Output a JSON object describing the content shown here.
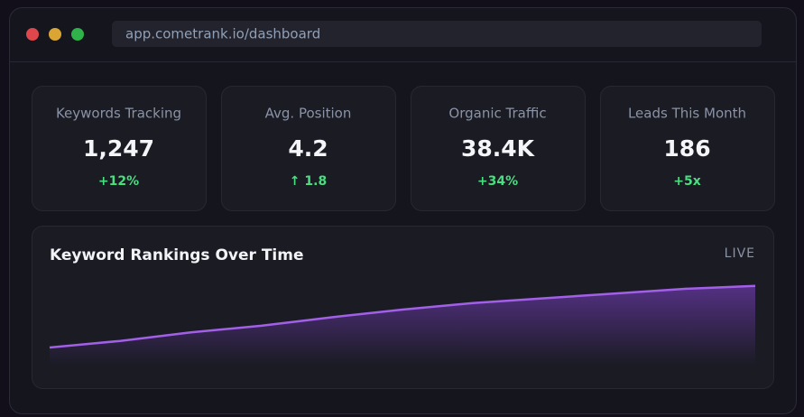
{
  "browser": {
    "url": "app.cometrank.io/dashboard"
  },
  "stats": [
    {
      "label": "Keywords Tracking",
      "value": "1,247",
      "change": "+12%"
    },
    {
      "label": "Avg. Position",
      "value": "4.2",
      "change": "↑ 1.8"
    },
    {
      "label": "Organic Traffic",
      "value": "38.4K",
      "change": "+34%"
    },
    {
      "label": "Leads This Month",
      "value": "186",
      "change": "+5x"
    }
  ],
  "chart_data": {
    "type": "area",
    "title": "Keyword Rankings Over Time",
    "badge": "LIVE",
    "values": [
      19,
      26,
      35,
      42,
      51,
      59,
      66,
      71,
      76,
      81,
      84
    ],
    "ylim": [
      0,
      100
    ],
    "color": "#a25fe8"
  }
}
